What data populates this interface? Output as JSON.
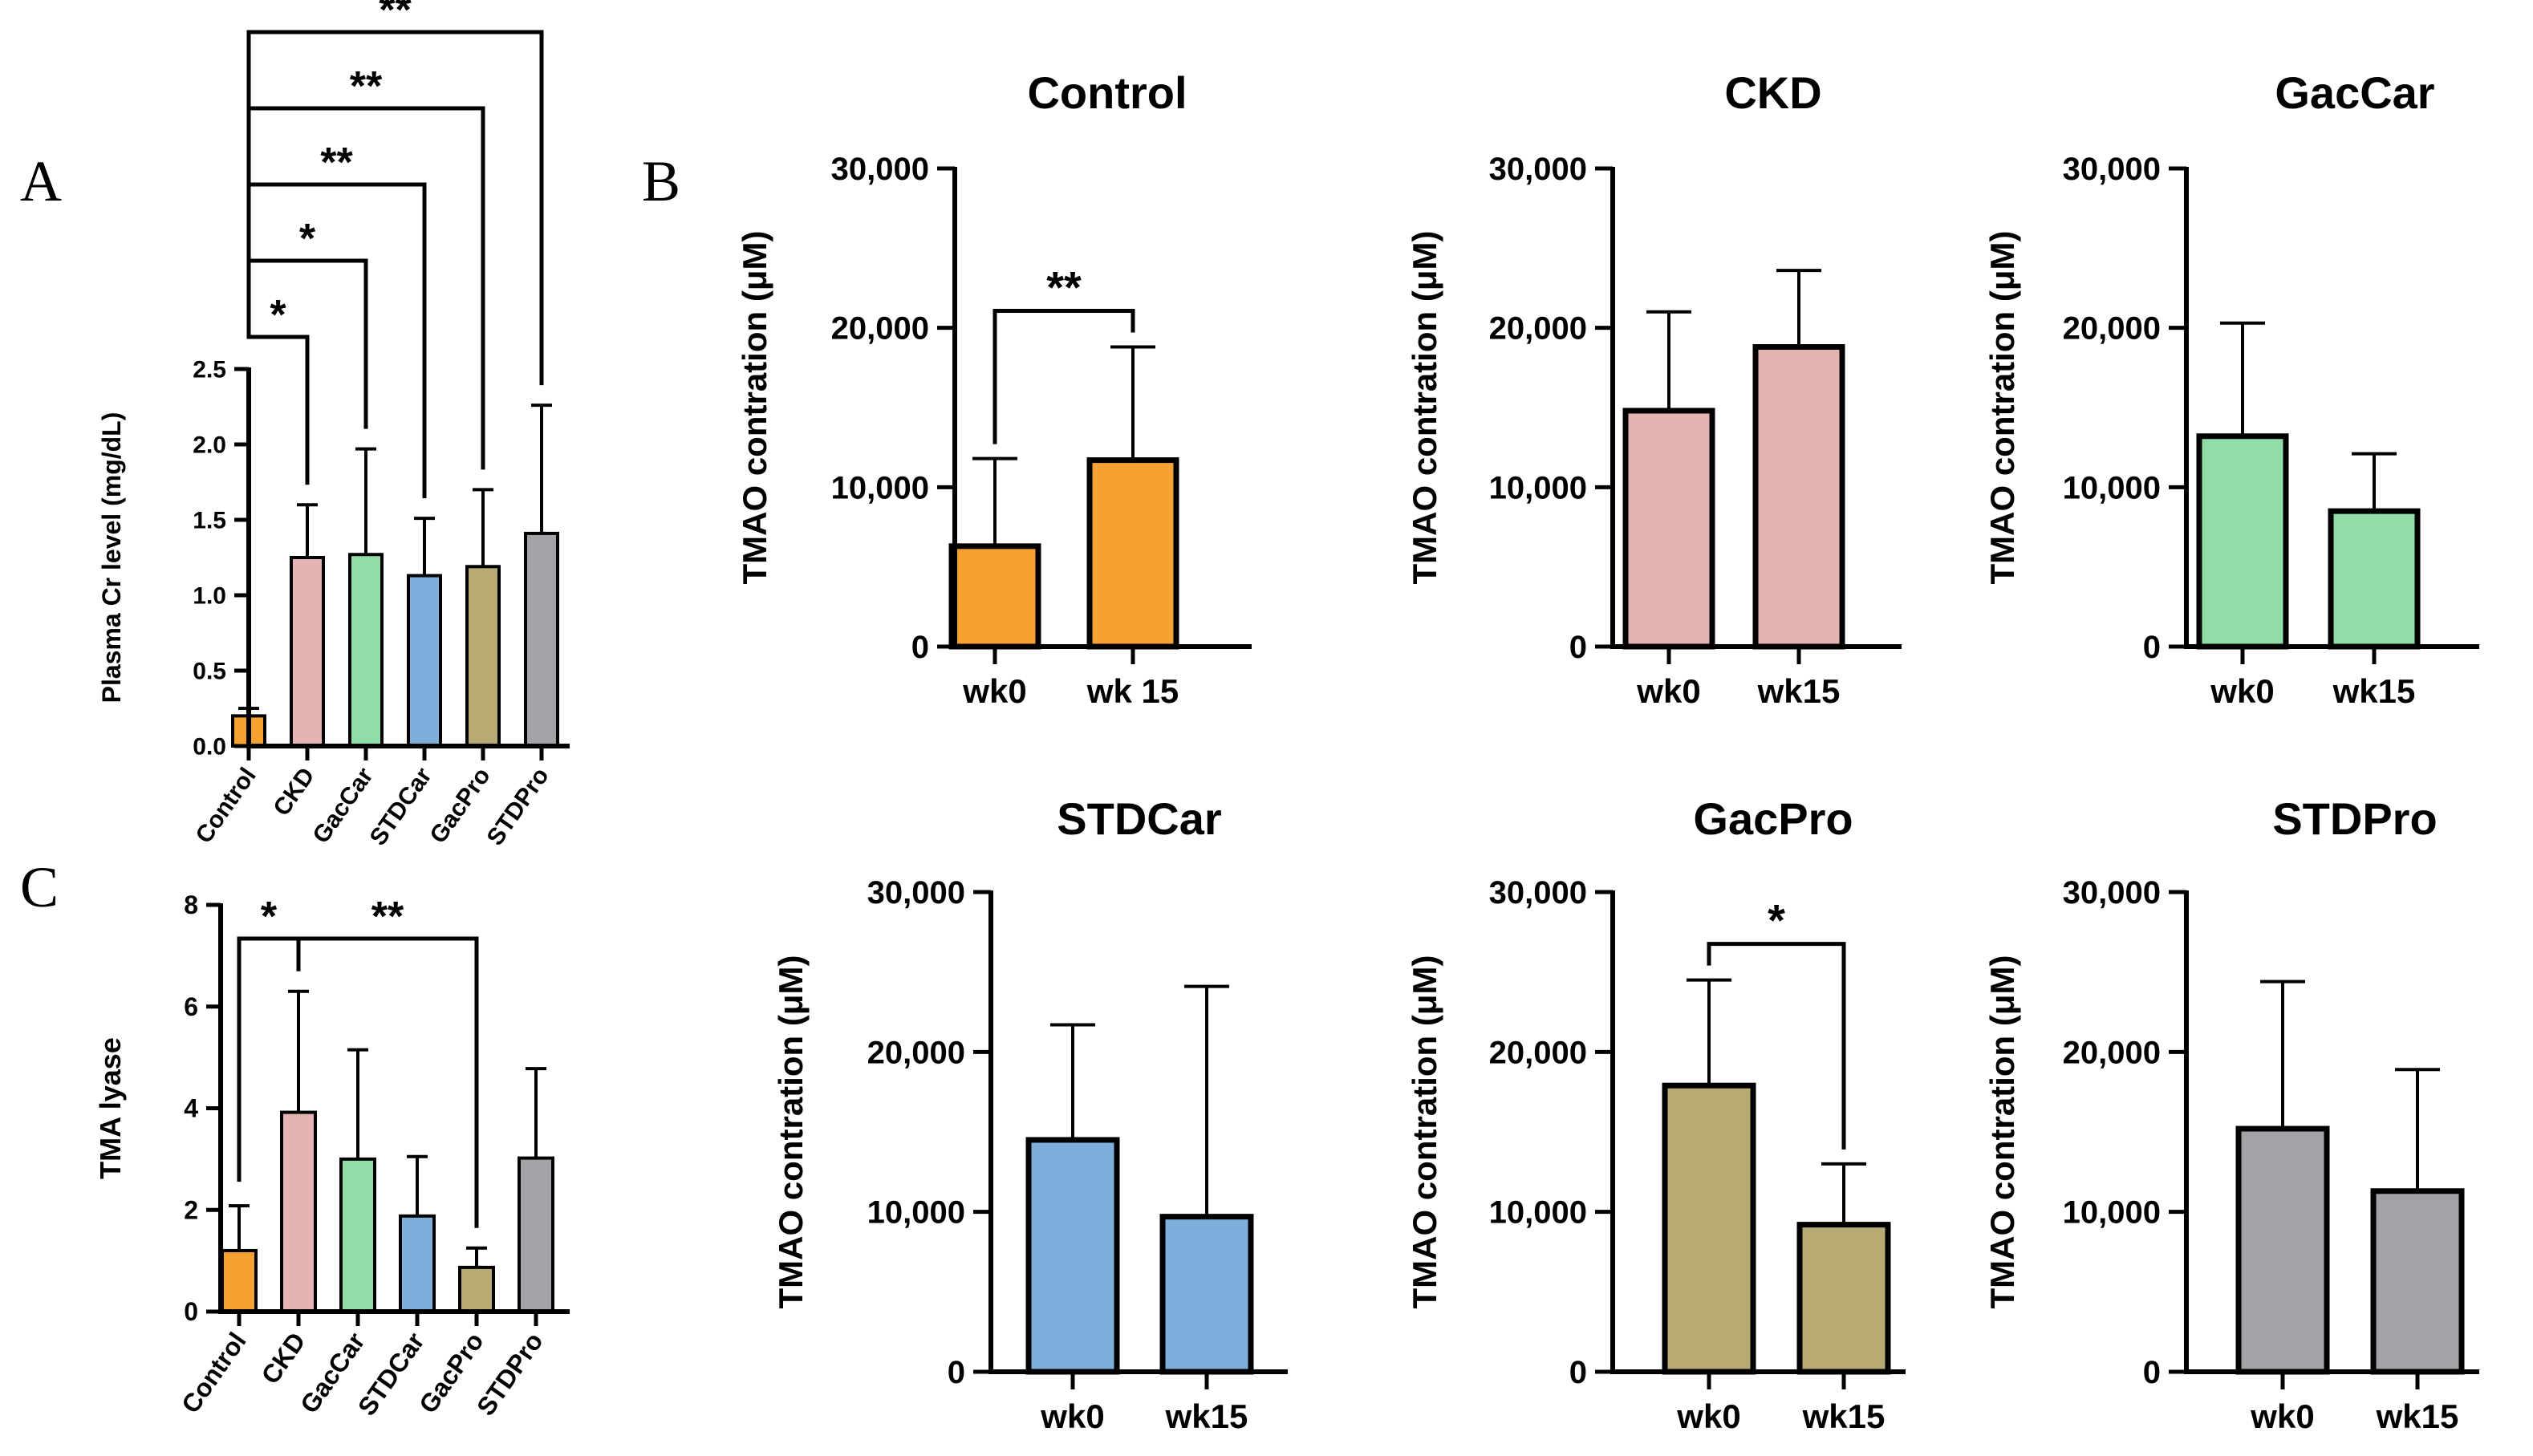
{
  "panel_labels": [
    "A",
    "B",
    "C"
  ],
  "colors": {
    "Control": "#F5A232",
    "CKD": "#E3B4B2",
    "GacCar": "#90DDA8",
    "STDCar": "#7DAFDA",
    "GacPro": "#B7AA72",
    "STDPro": "#A2A2A7"
  },
  "chart_data": [
    {
      "id": "A",
      "type": "bar",
      "ylabel": "Plasma Cr level (mg/dL)",
      "categories": [
        "Control",
        "CKD",
        "GacCar",
        "STDCar",
        "GacPro",
        "STDPro"
      ],
      "values": [
        0.2,
        1.25,
        1.27,
        1.13,
        1.19,
        1.41
      ],
      "errors": [
        0.05,
        0.35,
        0.7,
        0.38,
        0.51,
        0.85
      ],
      "ylim": [
        0,
        2.5
      ],
      "yticks": [
        0.0,
        0.5,
        1.0,
        1.5,
        2.0,
        2.5
      ],
      "ytick_labels": [
        "0.0",
        "0.5",
        "1.0",
        "1.5",
        "2.0",
        "2.5"
      ],
      "significance": [
        {
          "from": "Control",
          "to": "CKD",
          "label": "*"
        },
        {
          "from": "Control",
          "to": "GacCar",
          "label": "*"
        },
        {
          "from": "Control",
          "to": "STDCar",
          "label": "**"
        },
        {
          "from": "Control",
          "to": "GacPro",
          "label": "**"
        },
        {
          "from": "Control",
          "to": "STDPro",
          "label": "**"
        }
      ]
    },
    {
      "id": "C",
      "type": "bar",
      "ylabel": "TMA lyase",
      "categories": [
        "Control",
        "CKD",
        "GacCar",
        "STDCar",
        "GacPro",
        "STDPro"
      ],
      "values": [
        1.2,
        3.92,
        3.0,
        1.88,
        0.87,
        3.02
      ],
      "errors": [
        0.88,
        2.38,
        2.15,
        1.17,
        0.38,
        1.76
      ],
      "ylim": [
        0,
        8
      ],
      "yticks": [
        0,
        2,
        4,
        6,
        8
      ],
      "ytick_labels": [
        "0",
        "2",
        "4",
        "6",
        "8"
      ],
      "significance": [
        {
          "from": "Control",
          "to": "CKD",
          "label": "*"
        },
        {
          "from": "CKD",
          "to": "GacPro",
          "label": "**"
        }
      ]
    },
    {
      "id": "B-Control",
      "type": "bar",
      "title": "Control",
      "color_key": "Control",
      "ylabel": "TMAO contration (μM)",
      "categories": [
        "wk0",
        "wk 15"
      ],
      "values": [
        6300,
        11700
      ],
      "errors": [
        5500,
        7100
      ],
      "ylim": [
        0,
        30000
      ],
      "yticks": [
        0,
        10000,
        20000,
        30000
      ],
      "ytick_labels": [
        "0",
        "10,000",
        "20,000",
        "30,000"
      ],
      "significance": [
        {
          "from": "wk0",
          "to": "wk 15",
          "label": "**"
        }
      ]
    },
    {
      "id": "B-CKD",
      "type": "bar",
      "title": "CKD",
      "color_key": "CKD",
      "ylabel": "TMAO contration (μM)",
      "categories": [
        "wk0",
        "wk15"
      ],
      "values": [
        14800,
        18800
      ],
      "errors": [
        6200,
        4800
      ],
      "ylim": [
        0,
        30000
      ],
      "yticks": [
        0,
        10000,
        20000,
        30000
      ],
      "ytick_labels": [
        "0",
        "10,000",
        "20,000",
        "30,000"
      ],
      "significance": []
    },
    {
      "id": "B-GacCar",
      "type": "bar",
      "title": "GacCar",
      "color_key": "GacCar",
      "ylabel": "TMAO contration (μM)",
      "categories": [
        "wk0",
        "wk15"
      ],
      "values": [
        13200,
        8500
      ],
      "errors": [
        7100,
        3600
      ],
      "ylim": [
        0,
        30000
      ],
      "yticks": [
        0,
        10000,
        20000,
        30000
      ],
      "ytick_labels": [
        "0",
        "10,000",
        "20,000",
        "30,000"
      ],
      "significance": []
    },
    {
      "id": "B-STDCar",
      "type": "bar",
      "title": "STDCar",
      "color_key": "STDCar",
      "ylabel": "TMAO contration (μM)",
      "categories": [
        "wk0",
        "wk15"
      ],
      "values": [
        14500,
        9700
      ],
      "errors": [
        7200,
        14400
      ],
      "ylim": [
        0,
        30000
      ],
      "yticks": [
        0,
        10000,
        20000,
        30000
      ],
      "ytick_labels": [
        "0",
        "10,000",
        "20,000",
        "30,000"
      ],
      "significance": []
    },
    {
      "id": "B-GacPro",
      "type": "bar",
      "title": "GacPro",
      "color_key": "GacPro",
      "ylabel": "TMAO contration (μM)",
      "categories": [
        "wk0",
        "wk15"
      ],
      "values": [
        17900,
        9200
      ],
      "errors": [
        6600,
        3800
      ],
      "ylim": [
        0,
        30000
      ],
      "yticks": [
        0,
        10000,
        20000,
        30000
      ],
      "ytick_labels": [
        "0",
        "10,000",
        "20,000",
        "30,000"
      ],
      "significance": [
        {
          "from": "wk0",
          "to": "wk15",
          "label": "*"
        }
      ]
    },
    {
      "id": "B-STDPro",
      "type": "bar",
      "title": "STDPro",
      "color_key": "STDPro",
      "ylabel": "TMAO contration (μM)",
      "categories": [
        "wk0",
        "wk15"
      ],
      "values": [
        15200,
        11300
      ],
      "errors": [
        9200,
        7600
      ],
      "ylim": [
        0,
        30000
      ],
      "yticks": [
        0,
        10000,
        20000,
        30000
      ],
      "ytick_labels": [
        "0",
        "10,000",
        "20,000",
        "30,000"
      ],
      "significance": []
    }
  ]
}
